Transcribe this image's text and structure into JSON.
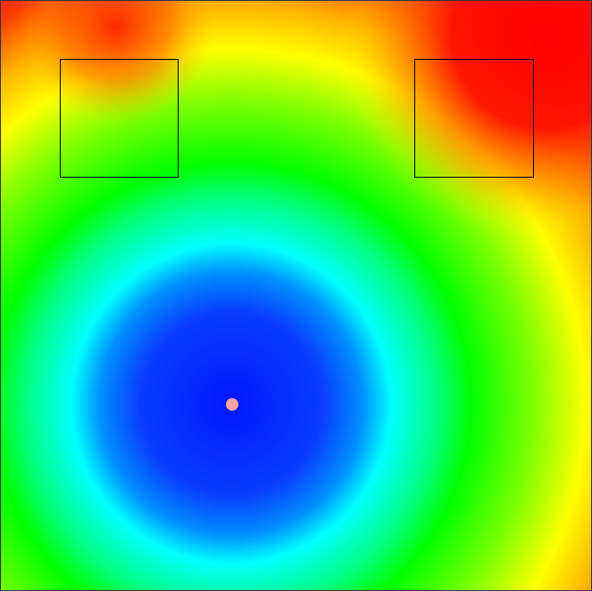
{
  "scene": {
    "type": "distance-heatmap",
    "colormap": [
      "#0000ff",
      "#1040ff",
      "#00ffff",
      "#00ff00",
      "#ffff00",
      "#ff8000",
      "#ff0000"
    ],
    "low_color": "#0000ff",
    "high_color": "#ff0000"
  },
  "target_boxes": [
    {
      "name": "target-box-left",
      "border_color": "#000000"
    },
    {
      "name": "target-box-right",
      "border_color": "#000000"
    }
  ],
  "agent": {
    "name": "agent-marker",
    "color": "#f4a3a3"
  }
}
